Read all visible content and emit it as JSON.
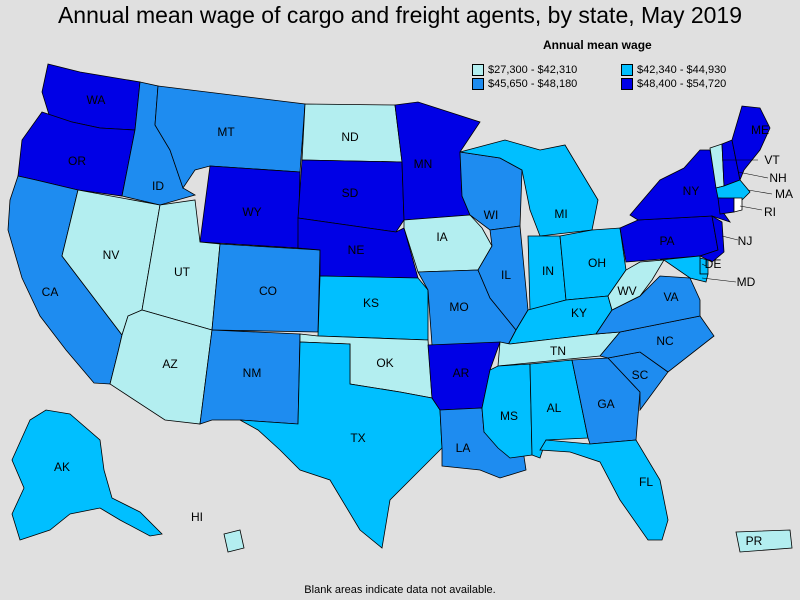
{
  "title": "Annual mean wage of cargo and freight agents, by state, May 2019",
  "legend": {
    "title": "Annual mean wage",
    "items": [
      {
        "range": "$27,300 - $42,310",
        "color": "#b3eef0"
      },
      {
        "range": "$42,340 - $44,930",
        "color": "#00bfff"
      },
      {
        "range": "$45,650 - $48,180",
        "color": "#1e8cf0"
      },
      {
        "range": "$48,400 - $54,720",
        "color": "#0000e6"
      }
    ]
  },
  "footnote": "Blank areas indicate data not available.",
  "states": {
    "WA": {
      "label": "WA",
      "tier": 3
    },
    "OR": {
      "label": "OR",
      "tier": 3
    },
    "CA": {
      "label": "CA",
      "tier": 2
    },
    "NV": {
      "label": "NV",
      "tier": 0
    },
    "ID": {
      "label": "ID",
      "tier": 2
    },
    "MT": {
      "label": "MT",
      "tier": 2
    },
    "WY": {
      "label": "WY",
      "tier": 3
    },
    "UT": {
      "label": "UT",
      "tier": 0
    },
    "AZ": {
      "label": "AZ",
      "tier": 0
    },
    "CO": {
      "label": "CO",
      "tier": 2
    },
    "NM": {
      "label": "NM",
      "tier": 2
    },
    "ND": {
      "label": "ND",
      "tier": 0
    },
    "SD": {
      "label": "SD",
      "tier": 3
    },
    "NE": {
      "label": "NE",
      "tier": 3
    },
    "KS": {
      "label": "KS",
      "tier": 1
    },
    "OK": {
      "label": "OK",
      "tier": 0
    },
    "TX": {
      "label": "TX",
      "tier": 1
    },
    "MN": {
      "label": "MN",
      "tier": 3
    },
    "IA": {
      "label": "IA",
      "tier": 0
    },
    "MO": {
      "label": "MO",
      "tier": 2
    },
    "AR": {
      "label": "AR",
      "tier": 3
    },
    "LA": {
      "label": "LA",
      "tier": 2
    },
    "WI": {
      "label": "WI",
      "tier": 2
    },
    "IL": {
      "label": "IL",
      "tier": 2
    },
    "MI": {
      "label": "MI",
      "tier": 1
    },
    "IN": {
      "label": "IN",
      "tier": 1
    },
    "OH": {
      "label": "OH",
      "tier": 1
    },
    "KY": {
      "label": "KY",
      "tier": 1
    },
    "TN": {
      "label": "TN",
      "tier": 0
    },
    "MS": {
      "label": "MS",
      "tier": 1
    },
    "AL": {
      "label": "AL",
      "tier": 1
    },
    "GA": {
      "label": "GA",
      "tier": 2
    },
    "FL": {
      "label": "FL",
      "tier": 1
    },
    "SC": {
      "label": "SC",
      "tier": 2
    },
    "NC": {
      "label": "NC",
      "tier": 2
    },
    "VA": {
      "label": "VA",
      "tier": 2
    },
    "WV": {
      "label": "WV",
      "tier": 0
    },
    "PA": {
      "label": "PA",
      "tier": 3
    },
    "NY": {
      "label": "NY",
      "tier": 3
    },
    "VT": {
      "label": "VT",
      "tier": 0
    },
    "NH": {
      "label": "NH",
      "tier": 3
    },
    "ME": {
      "label": "ME",
      "tier": 3
    },
    "MA": {
      "label": "MA",
      "tier": 1
    },
    "RI": {
      "label": "RI",
      "tier": null
    },
    "CT": {
      "tier": 3
    },
    "NJ": {
      "label": "NJ",
      "tier": 3
    },
    "DE": {
      "label": "DE",
      "tier": 1
    },
    "MD": {
      "label": "MD",
      "tier": 1
    },
    "AK": {
      "label": "AK",
      "tier": 1
    },
    "HI": {
      "label": "HI",
      "tier": 0
    },
    "PR": {
      "label": "PR",
      "tier": 0
    }
  },
  "blank_color": "#ffffff"
}
